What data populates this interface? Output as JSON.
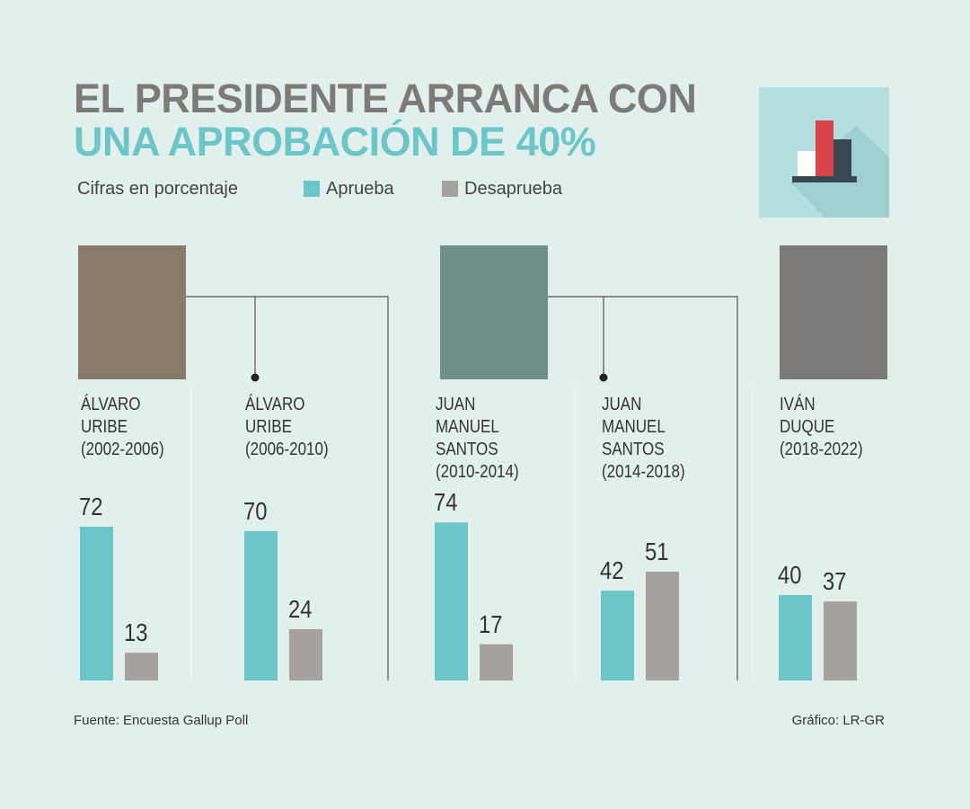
{
  "chart_data": {
    "type": "bar",
    "title": "EL PRESIDENTE ARRANCA CON",
    "subtitle": "UNA APROBACIÓN DE 40%",
    "note": "Cifras en porcentaje",
    "categories": [
      "ÁLVARO\nURIBE\n(2002-2006)",
      "ÁLVARO\nURIBE\n(2006-2010)",
      "JUAN\nMANUEL\nSANTOS\n(2010-2014)",
      "JUAN\nMANUEL\nSANTOS\n(2014-2018)",
      "IVÁN\nDUQUE\n(2018-2022)"
    ],
    "series": [
      {
        "name": "Aprueba",
        "color": "#6cc5c6",
        "values": [
          72,
          70,
          74,
          42,
          40
        ]
      },
      {
        "name": "Desaprueba",
        "color": "#a6a2a0",
        "values": [
          13,
          24,
          17,
          51,
          37
        ]
      }
    ],
    "ylim": [
      0,
      100
    ],
    "source": "Fuente: Encuesta Gallup Poll",
    "credit": "Gráfico: LR-GR"
  }
}
